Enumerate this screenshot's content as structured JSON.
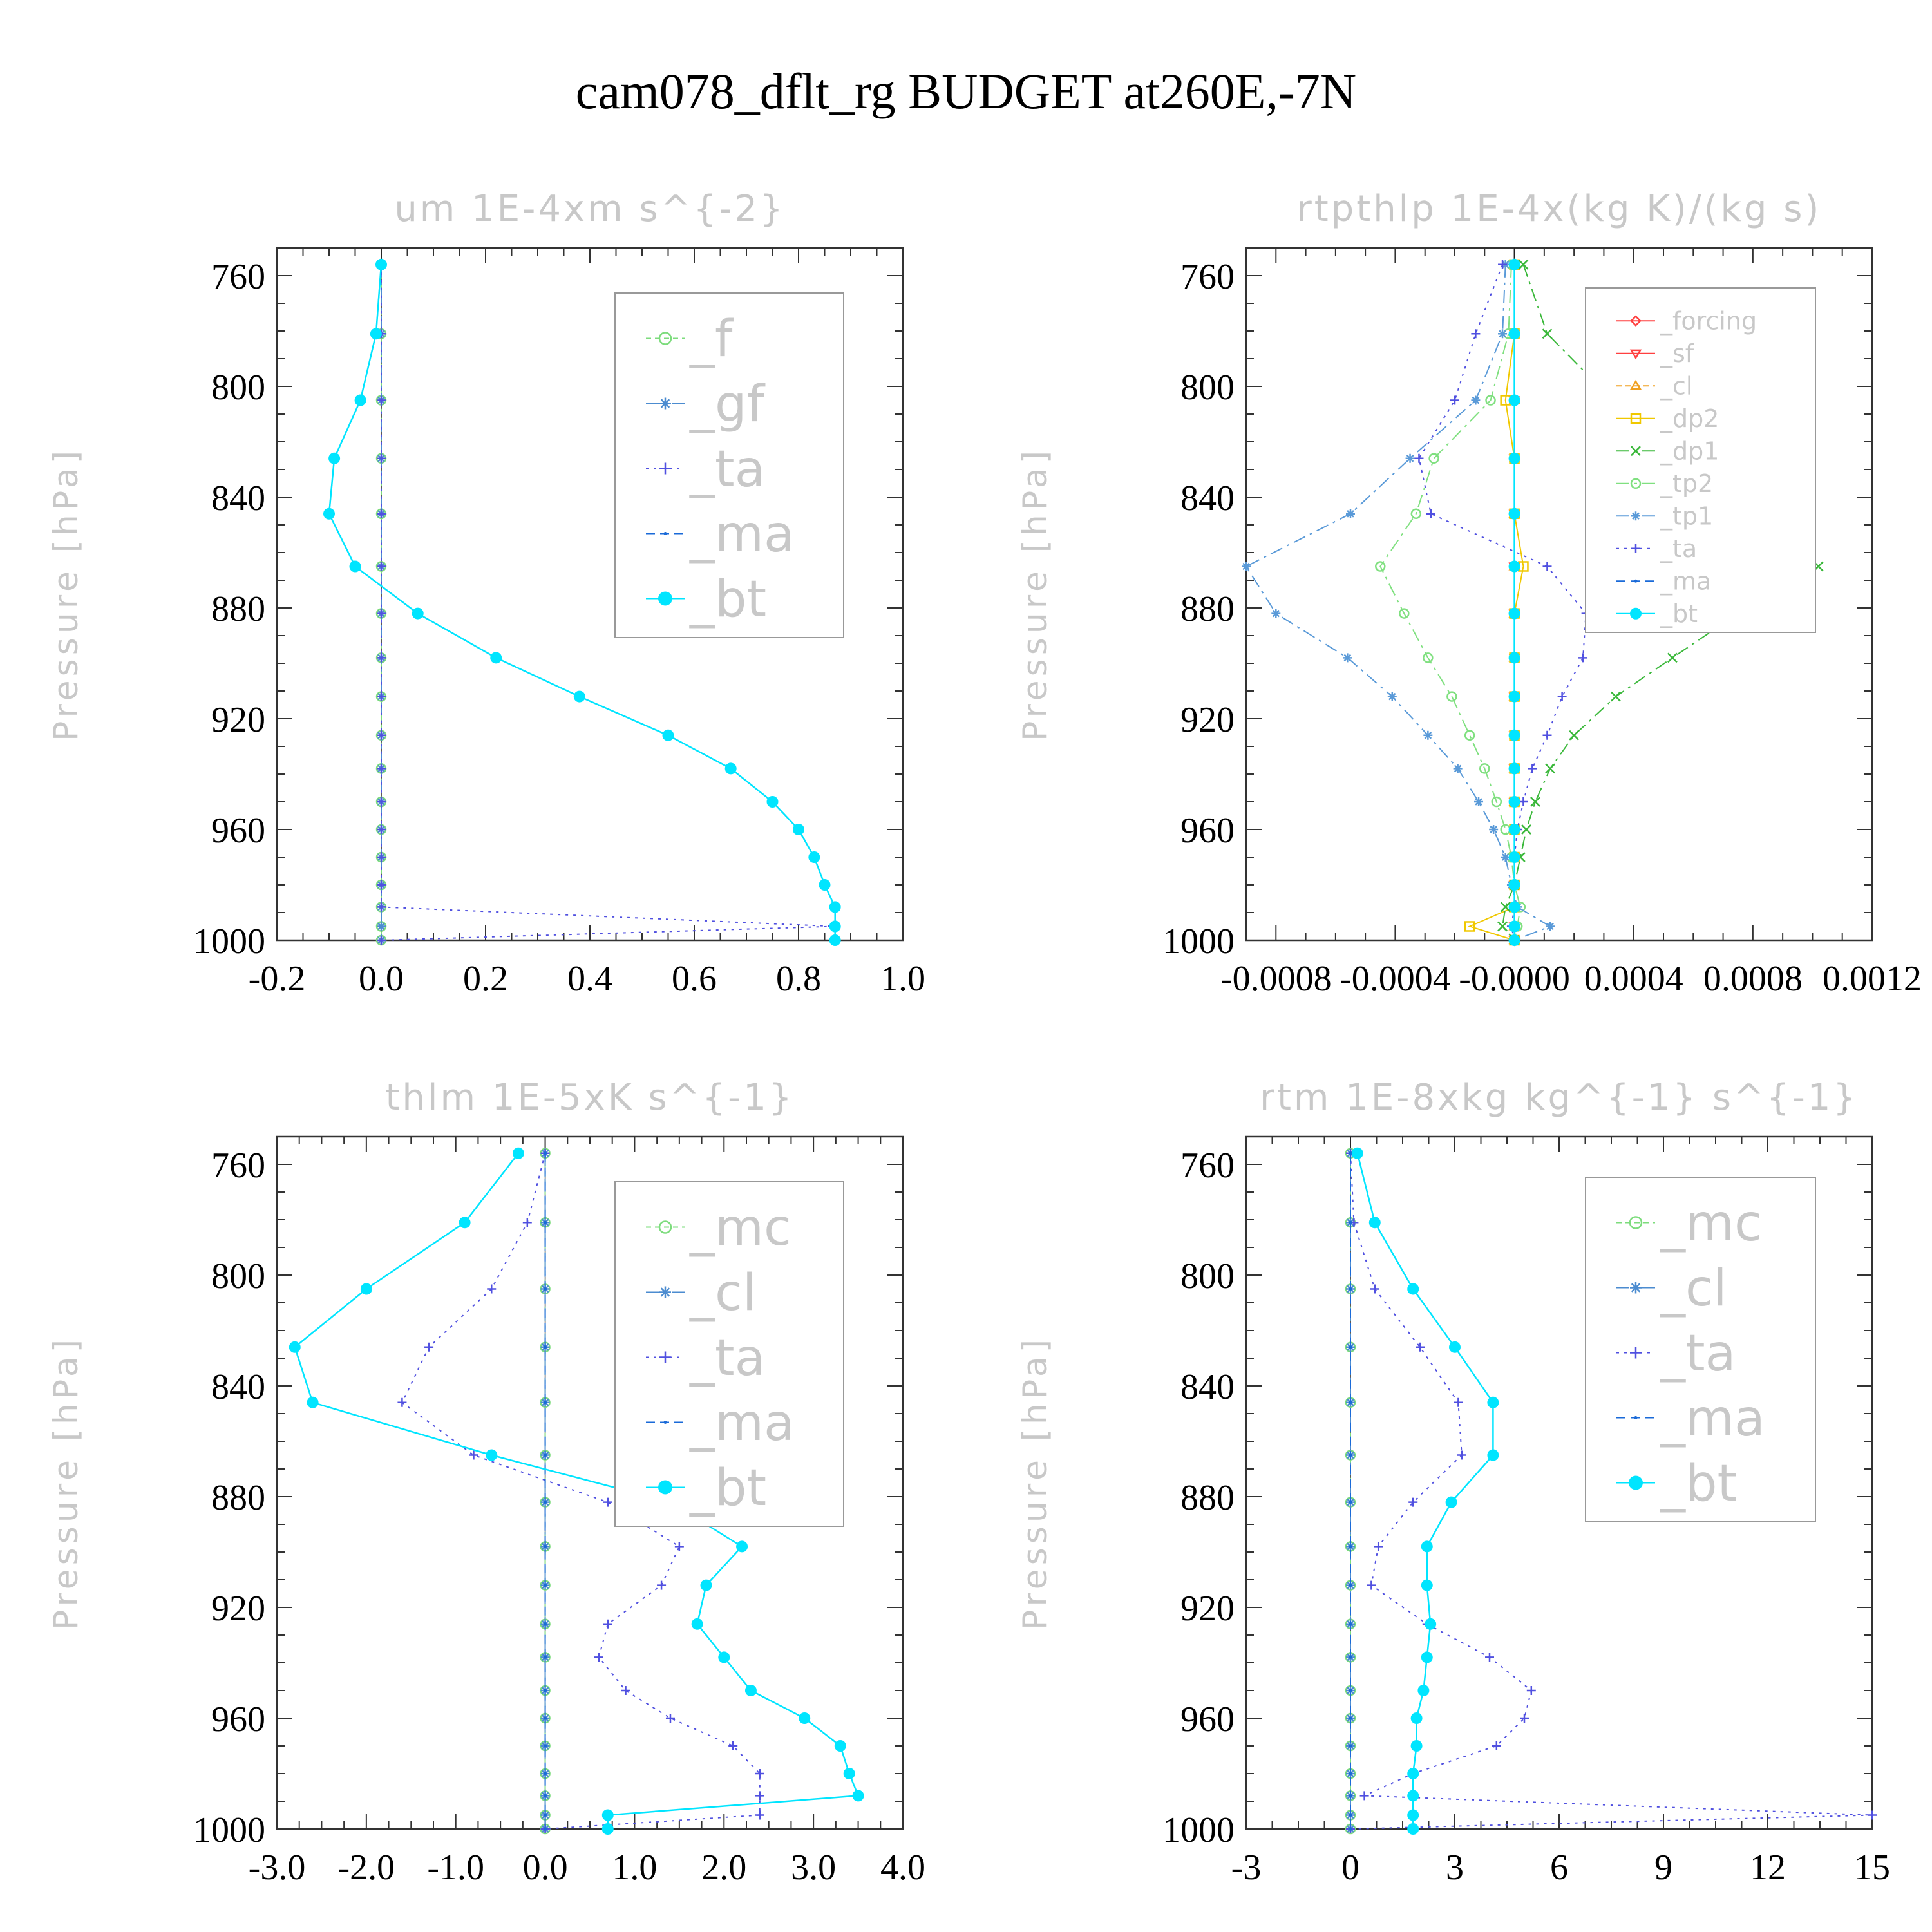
{
  "title": "cam078_dflt_rg  BUDGET at260E,-7N",
  "chart_data": [
    {
      "type": "line",
      "title": "um   1E-4xm s^{-2}",
      "ylabel": "Pressure [hPa]",
      "xlim": [
        -0.2,
        1.0
      ],
      "ylim": [
        750,
        1000
      ],
      "yticks": [
        760,
        800,
        840,
        880,
        920,
        960,
        1000
      ],
      "xticks": [
        -0.2,
        0.0,
        0.2,
        0.4,
        0.6,
        0.8,
        1.0
      ],
      "xtick_labels": [
        "-0.2",
        "0.0",
        "0.2",
        "0.4",
        "0.6",
        "0.8",
        "1.0"
      ],
      "legend_position": "top-right",
      "pressure_levels": [
        756,
        781,
        805,
        826,
        846,
        865,
        882,
        898,
        912,
        926,
        938,
        950,
        960,
        970,
        980,
        988,
        995,
        1000
      ],
      "series": [
        {
          "name": "_f",
          "color": "#7ddc7d",
          "marker": "circle-open",
          "dash": "8,6",
          "values": [
            0,
            0,
            0,
            0,
            0,
            0,
            0,
            0,
            0,
            0,
            0,
            0,
            0,
            0,
            0,
            0,
            0,
            0
          ]
        },
        {
          "name": "_gf",
          "color": "#4c8cd0",
          "marker": "star",
          "dash": "20,8,4,8",
          "values": [
            0,
            0,
            0,
            0,
            0,
            0,
            0,
            0,
            0,
            0,
            0,
            0,
            0,
            0,
            0,
            0,
            0,
            0
          ]
        },
        {
          "name": "_ta",
          "color": "#5050e0",
          "marker": "plus",
          "dash": "4,8",
          "values": [
            0,
            0,
            0,
            0,
            0,
            0,
            0,
            0,
            0,
            0,
            0,
            0,
            0,
            0,
            0,
            0,
            0.87,
            0
          ]
        },
        {
          "name": "_ma",
          "color": "#1a6ad8",
          "marker": "dot",
          "dash": "14,8",
          "values": [
            0,
            -0.01,
            -0.04,
            -0.09,
            -0.1,
            -0.05,
            0.07,
            0.22,
            0.38,
            0.55,
            0.67,
            0.75,
            0.8,
            0.83,
            0.85,
            0.87,
            0.87,
            0.87
          ]
        },
        {
          "name": "_bt",
          "color": "#00e5ff",
          "marker": "dot-filled",
          "dash": "",
          "values": [
            0,
            -0.01,
            -0.04,
            -0.09,
            -0.1,
            -0.05,
            0.07,
            0.22,
            0.38,
            0.55,
            0.67,
            0.75,
            0.8,
            0.83,
            0.85,
            0.87,
            0.87,
            0.87
          ]
        }
      ]
    },
    {
      "type": "line",
      "title": "rtpthlp   1E-4x(kg K)/(kg s)",
      "ylabel": "Pressure [hPa]",
      "xlim": [
        -0.0009,
        0.0012
      ],
      "ylim": [
        750,
        1000
      ],
      "yticks": [
        760,
        800,
        840,
        880,
        920,
        960,
        1000
      ],
      "xticks": [
        -0.0008,
        -0.0004,
        0.0,
        0.0004,
        0.0008,
        0.0012
      ],
      "xtick_labels": [
        "-0.0008",
        "-0.0004",
        "-0.0000",
        "0.0004",
        "0.0008",
        "0.0012"
      ],
      "legend_position": "top-right",
      "pressure_levels": [
        756,
        781,
        805,
        826,
        846,
        865,
        882,
        898,
        912,
        926,
        938,
        950,
        960,
        970,
        980,
        988,
        995,
        1000
      ],
      "series": [
        {
          "name": "_forcing",
          "color": "#ff4040",
          "marker": "diamond",
          "dash": "",
          "values": [
            0,
            0,
            0,
            0,
            0,
            0,
            0,
            0,
            0,
            0,
            0,
            0,
            0,
            0,
            0,
            0,
            0,
            0
          ]
        },
        {
          "name": "_sf",
          "color": "#ff4040",
          "marker": "triangle-down",
          "dash": "",
          "values": [
            0,
            0,
            0,
            0,
            0,
            0,
            0,
            0,
            0,
            0,
            0,
            0,
            0,
            0,
            0,
            0,
            0,
            0
          ]
        },
        {
          "name": "_cl",
          "color": "#f0a020",
          "marker": "triangle-up",
          "dash": "8,6",
          "values": [
            0,
            0,
            0,
            0,
            0,
            0,
            0,
            0,
            0,
            0,
            0,
            0,
            0,
            0,
            0,
            0,
            0,
            0
          ]
        },
        {
          "name": "_dp2",
          "color": "#f0c800",
          "marker": "square",
          "dash": "",
          "values": [
            0,
            0,
            -3e-05,
            0,
            0,
            3e-05,
            0,
            0,
            0,
            0,
            0,
            0,
            0,
            0,
            0,
            0,
            -0.00015,
            0
          ]
        },
        {
          "name": "_dp1",
          "color": "#3ab83a",
          "marker": "cross",
          "dash": "20,8,4,8",
          "values": [
            3e-05,
            0.00011,
            0.00033,
            0.00074,
            0.0009,
            0.00102,
            0.00075,
            0.00053,
            0.00034,
            0.0002,
            0.00012,
            7e-05,
            4e-05,
            2e-05,
            0,
            -3e-05,
            -4e-05,
            0
          ]
        },
        {
          "name": "_tp2",
          "color": "#80e080",
          "marker": "circle-open",
          "dash": "20,8,4,8",
          "values": [
            -1e-05,
            -2e-05,
            -8e-05,
            -0.00027,
            -0.00033,
            -0.00045,
            -0.00037,
            -0.00029,
            -0.00021,
            -0.00015,
            -0.0001,
            -6e-05,
            -3e-05,
            -1e-05,
            0,
            2e-05,
            1e-05,
            0
          ]
        },
        {
          "name": "_tp1",
          "color": "#5a9ad8",
          "marker": "star",
          "dash": "20,8,4,8",
          "values": [
            -3e-05,
            -4e-05,
            -0.00013,
            -0.00035,
            -0.00055,
            -0.0009,
            -0.0008,
            -0.00056,
            -0.00041,
            -0.00029,
            -0.00019,
            -0.00012,
            -7e-05,
            -3e-05,
            -1e-05,
            1e-05,
            0.00012,
            0
          ]
        },
        {
          "name": "_ta",
          "color": "#5050e0",
          "marker": "plus",
          "dash": "4,8",
          "values": [
            -4e-05,
            -0.00013,
            -0.0002,
            -0.00032,
            -0.00028,
            0.00011,
            0.00024,
            0.00023,
            0.00016,
            0.00011,
            6e-05,
            3e-05,
            1e-05,
            0,
            0,
            0,
            -1e-05,
            0
          ]
        },
        {
          "name": "_ma",
          "color": "#1a6ad8",
          "marker": "dot",
          "dash": "14,8",
          "values": [
            0,
            0,
            0,
            0,
            0,
            0,
            0,
            0,
            0,
            0,
            0,
            0,
            0,
            0,
            0,
            0,
            0,
            0
          ]
        },
        {
          "name": "_bt",
          "color": "#00e5ff",
          "marker": "dot-filled",
          "dash": "",
          "values": [
            0,
            0,
            0,
            0,
            0,
            0,
            0,
            0,
            0,
            0,
            0,
            0,
            0,
            0,
            0,
            0,
            0,
            0
          ]
        }
      ]
    },
    {
      "type": "line",
      "title": "thlm   1E-5xK s^{-1}",
      "ylabel": "Pressure [hPa]",
      "xlim": [
        -3.0,
        4.0
      ],
      "ylim": [
        750,
        1000
      ],
      "yticks": [
        760,
        800,
        840,
        880,
        920,
        960,
        1000
      ],
      "xticks": [
        -3.0,
        -2.0,
        -1.0,
        0.0,
        1.0,
        2.0,
        3.0,
        4.0
      ],
      "xtick_labels": [
        "-3.0",
        "-2.0",
        "-1.0",
        "0.0",
        "1.0",
        "2.0",
        "3.0",
        "4.0"
      ],
      "legend_position": "top-right",
      "pressure_levels": [
        756,
        781,
        805,
        826,
        846,
        865,
        882,
        898,
        912,
        926,
        938,
        950,
        960,
        970,
        980,
        988,
        995,
        1000
      ],
      "series": [
        {
          "name": "_mc",
          "color": "#7ddc7d",
          "marker": "circle-open",
          "dash": "8,6",
          "values": [
            0,
            0,
            0,
            0,
            0,
            0,
            0,
            0,
            0,
            0,
            0,
            0,
            0,
            0,
            0,
            0,
            0,
            0
          ]
        },
        {
          "name": "_cl",
          "color": "#4c8cd0",
          "marker": "star",
          "dash": "20,8,4,8",
          "values": [
            0,
            0,
            0,
            0,
            0,
            0,
            0,
            0,
            0,
            0,
            0,
            0,
            0,
            0,
            0,
            0,
            0,
            0
          ]
        },
        {
          "name": "_ta",
          "color": "#5050e0",
          "marker": "plus",
          "dash": "4,8",
          "values": [
            0,
            -0.2,
            -0.6,
            -1.3,
            -1.6,
            -0.8,
            0.7,
            1.5,
            1.3,
            0.7,
            0.6,
            0.9,
            1.4,
            2.1,
            2.4,
            2.4,
            2.4,
            0
          ]
        },
        {
          "name": "_ma",
          "color": "#1a6ad8",
          "marker": "dot",
          "dash": "14,8",
          "values": [
            0,
            0,
            0,
            0,
            0,
            0,
            0,
            0,
            0,
            0,
            0,
            0,
            0,
            0,
            0,
            0,
            0,
            0
          ]
        },
        {
          "name": "_bt",
          "color": "#00e5ff",
          "marker": "dot-filled",
          "dash": "",
          "values": [
            -0.3,
            -0.9,
            -2.0,
            -2.8,
            -2.6,
            -0.6,
            1.4,
            2.2,
            1.8,
            1.7,
            2.0,
            2.3,
            2.9,
            3.3,
            3.4,
            3.5,
            0.7,
            0.7
          ]
        }
      ]
    },
    {
      "type": "line",
      "title": "rtm   1E-8xkg kg^{-1} s^{-1}",
      "ylabel": "Pressure [hPa]",
      "xlim": [
        -3,
        15
      ],
      "ylim": [
        750,
        1000
      ],
      "yticks": [
        760,
        800,
        840,
        880,
        920,
        960,
        1000
      ],
      "xticks": [
        -3,
        0,
        3,
        6,
        9,
        12,
        15
      ],
      "xtick_labels": [
        "-3",
        "0",
        "3",
        "6",
        "9",
        "12",
        "15"
      ],
      "legend_position": "top-right",
      "pressure_levels": [
        756,
        781,
        805,
        826,
        846,
        865,
        882,
        898,
        912,
        926,
        938,
        950,
        960,
        970,
        980,
        988,
        995,
        1000
      ],
      "series": [
        {
          "name": "_mc",
          "color": "#7ddc7d",
          "marker": "circle-open",
          "dash": "8,6",
          "values": [
            0,
            0,
            0,
            0,
            0,
            0,
            0,
            0,
            0,
            0,
            0,
            0,
            0,
            0,
            0,
            0,
            0,
            0
          ]
        },
        {
          "name": "_cl",
          "color": "#4c8cd0",
          "marker": "star",
          "dash": "20,8,4,8",
          "values": [
            0,
            0,
            0,
            0,
            0,
            0,
            0,
            0,
            0,
            0,
            0,
            0,
            0,
            0,
            0,
            0,
            0,
            0
          ]
        },
        {
          "name": "_ta",
          "color": "#5050e0",
          "marker": "plus",
          "dash": "4,8",
          "values": [
            0,
            0.1,
            0.7,
            2.0,
            3.1,
            3.2,
            1.8,
            0.8,
            0.6,
            2.2,
            4.0,
            5.2,
            5.0,
            4.2,
            1.8,
            0.4,
            15,
            0
          ]
        },
        {
          "name": "_ma",
          "color": "#1a6ad8",
          "marker": "dot",
          "dash": "14,8",
          "values": [
            0,
            0,
            0,
            0,
            0,
            0,
            0,
            0,
            0,
            0,
            0,
            0,
            0,
            0,
            0,
            0,
            0,
            0
          ]
        },
        {
          "name": "_bt",
          "color": "#00e5ff",
          "marker": "dot-filled",
          "dash": "",
          "values": [
            0.2,
            0.7,
            1.8,
            3.0,
            4.1,
            4.1,
            2.9,
            2.2,
            2.2,
            2.3,
            2.2,
            2.1,
            1.9,
            1.9,
            1.8,
            1.8,
            1.8,
            1.8
          ]
        }
      ]
    }
  ]
}
